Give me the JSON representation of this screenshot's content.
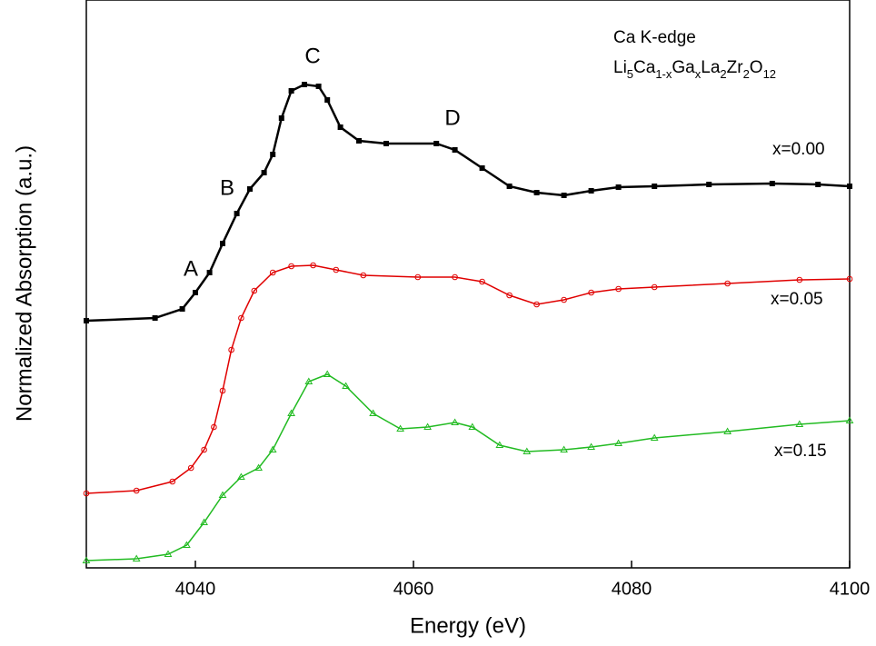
{
  "chart_data": {
    "type": "line",
    "title": "Ca K-edge",
    "subtitle_parts": [
      "Li",
      "5",
      "Ca",
      "1-x",
      "Ga",
      "x",
      "La",
      "2",
      "Zr",
      "2",
      "O",
      "12"
    ],
    "x_label": "Energy (eV)",
    "y_label": "Normalized Absorption (a.u.)",
    "xlim": [
      4030,
      4100
    ],
    "xticks": [
      4040,
      4060,
      4080,
      4100
    ],
    "ylim": [
      0,
      6.25
    ],
    "annotations": [
      "A",
      "B",
      "C",
      "D"
    ],
    "series": [
      {
        "name": "x=0.00",
        "color": "#000000",
        "marker": "square",
        "x": [
          4030,
          4036.3,
          4038.8,
          4040,
          4041.3,
          4042.5,
          4043.8,
          4045,
          4046.3,
          4047.1,
          4047.9,
          4048.8,
          4050,
          4051.3,
          4052.1,
          4053.3,
          4055,
          4057.5,
          4062.1,
          4063.8,
          4066.3,
          4068.8,
          4071.3,
          4073.8,
          4076.3,
          4078.8,
          4082.1,
          4087.1,
          4092.9,
          4097.1,
          4100
        ],
        "values": [
          2.72,
          2.75,
          2.85,
          3.03,
          3.25,
          3.57,
          3.9,
          4.17,
          4.35,
          4.55,
          4.95,
          5.25,
          5.32,
          5.3,
          5.15,
          4.85,
          4.7,
          4.67,
          4.67,
          4.6,
          4.4,
          4.2,
          4.13,
          4.1,
          4.15,
          4.19,
          4.2,
          4.22,
          4.23,
          4.22,
          4.2
        ]
      },
      {
        "name": "x=0.05",
        "color": "#e00000",
        "marker": "circle",
        "x": [
          4030,
          4034.6,
          4037.9,
          4039.6,
          4040.8,
          4041.7,
          4042.5,
          4043.3,
          4044.2,
          4045.4,
          4047.1,
          4048.8,
          4050.8,
          4052.9,
          4055.4,
          4060.4,
          4063.8,
          4066.3,
          4068.8,
          4071.3,
          4073.8,
          4076.3,
          4078.8,
          4082.1,
          4088.8,
          4095.4,
          4100
        ],
        "values": [
          0.82,
          0.85,
          0.95,
          1.1,
          1.3,
          1.55,
          1.95,
          2.4,
          2.75,
          3.05,
          3.25,
          3.32,
          3.33,
          3.28,
          3.22,
          3.2,
          3.2,
          3.15,
          3.0,
          2.9,
          2.95,
          3.03,
          3.07,
          3.09,
          3.13,
          3.17,
          3.18
        ]
      },
      {
        "name": "x=0.15",
        "color": "#22bb22",
        "marker": "triangle",
        "x": [
          4030,
          4034.6,
          4037.5,
          4039.2,
          4040.8,
          4042.5,
          4044.2,
          4045.8,
          4047.1,
          4048.8,
          4050.4,
          4052.1,
          4053.8,
          4056.3,
          4058.8,
          4061.3,
          4063.8,
          4065.4,
          4067.9,
          4070.4,
          4073.8,
          4076.3,
          4078.8,
          4082.1,
          4088.8,
          4095.4,
          4100
        ],
        "values": [
          0.08,
          0.1,
          0.15,
          0.25,
          0.5,
          0.8,
          1.0,
          1.1,
          1.3,
          1.7,
          2.05,
          2.13,
          2.0,
          1.7,
          1.53,
          1.55,
          1.6,
          1.55,
          1.35,
          1.28,
          1.3,
          1.33,
          1.37,
          1.43,
          1.5,
          1.58,
          1.62
        ]
      }
    ]
  }
}
